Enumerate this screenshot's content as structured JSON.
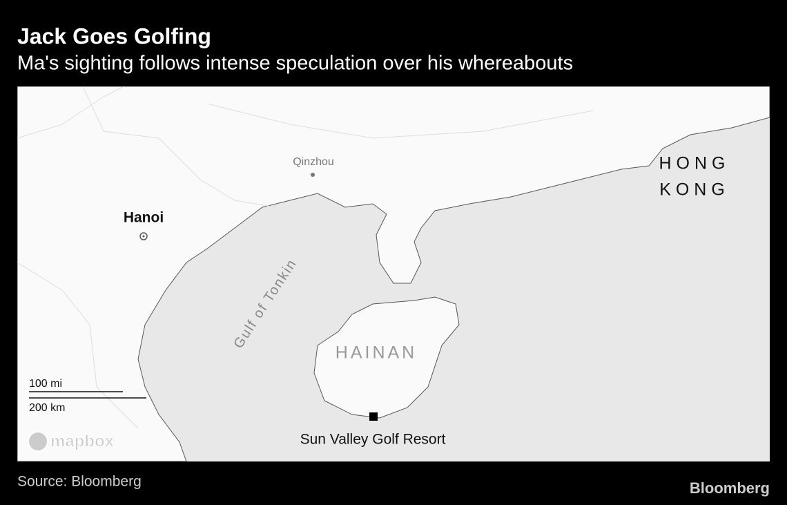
{
  "header": {
    "title": "Jack Goes Golfing",
    "subtitle": "Ma's sighting follows intense speculation over his whereabouts"
  },
  "map": {
    "cities": [
      "Qinzhou",
      "Hanoi"
    ],
    "regions": [
      "HONG",
      "KONG",
      "HAINAN"
    ],
    "water": "Gulf of Tonkin",
    "marker": "Sun Valley Golf Resort",
    "scale": [
      "100 mi",
      "200 km"
    ],
    "attribution": "mapbox"
  },
  "footer": {
    "source": "Source: Bloomberg",
    "logo": "Bloomberg"
  }
}
